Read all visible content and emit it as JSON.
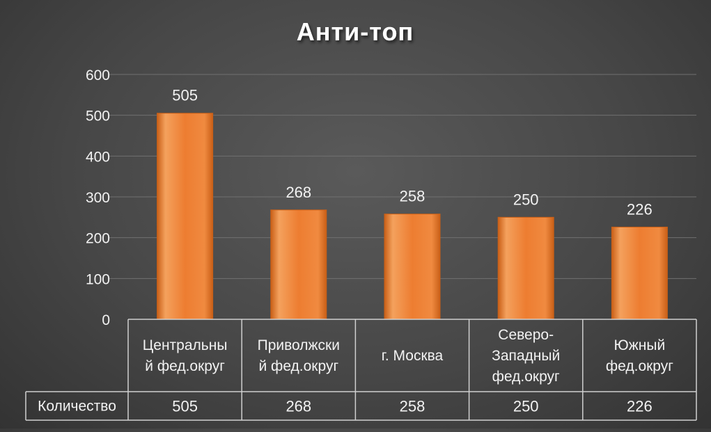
{
  "chart_data": {
    "type": "bar",
    "title": "Анти-топ",
    "categories": [
      [
        "Центральны",
        "й фед.округ"
      ],
      [
        "Приволжски",
        "й фед.округ"
      ],
      [
        "г. Москва"
      ],
      [
        "Северо-",
        "Западный",
        "фед.округ"
      ],
      [
        "Южный",
        "фед.округ"
      ]
    ],
    "series": [
      {
        "name": "Количество",
        "values": [
          505,
          268,
          258,
          250,
          226
        ]
      }
    ],
    "ylim": [
      0,
      600
    ],
    "yticks": [
      "0",
      "100",
      "200",
      "300",
      "400",
      "500",
      "600"
    ],
    "grid": true,
    "data_table": true,
    "colors": {
      "bar": "#ED7D31",
      "bar_light": "#F4A15D",
      "bar_dark": "#C95F17",
      "grid": "#707070",
      "table_line": "#d0d0d0"
    }
  }
}
